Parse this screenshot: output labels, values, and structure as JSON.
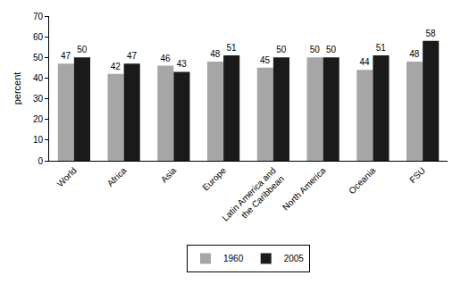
{
  "chart_data": {
    "type": "bar",
    "y_label": "percent",
    "categories": [
      "World",
      "Africa",
      "Asia",
      "Europe",
      "Latin America and the Caribbean",
      "North America",
      "Oceania",
      "FSU"
    ],
    "series": [
      {
        "name": "1960",
        "color": "#a6a6a6",
        "values": [
          47,
          42,
          46,
          48,
          45,
          50,
          44,
          48
        ]
      },
      {
        "name": "2005",
        "color": "#1a1a1a",
        "values": [
          50,
          47,
          43,
          51,
          50,
          50,
          51,
          58
        ]
      }
    ],
    "ylim": [
      0,
      70
    ],
    "yticks": [
      0,
      10,
      20,
      30,
      40,
      50,
      60,
      70
    ],
    "grid": false,
    "legend": "bottom",
    "data_labels": true
  }
}
